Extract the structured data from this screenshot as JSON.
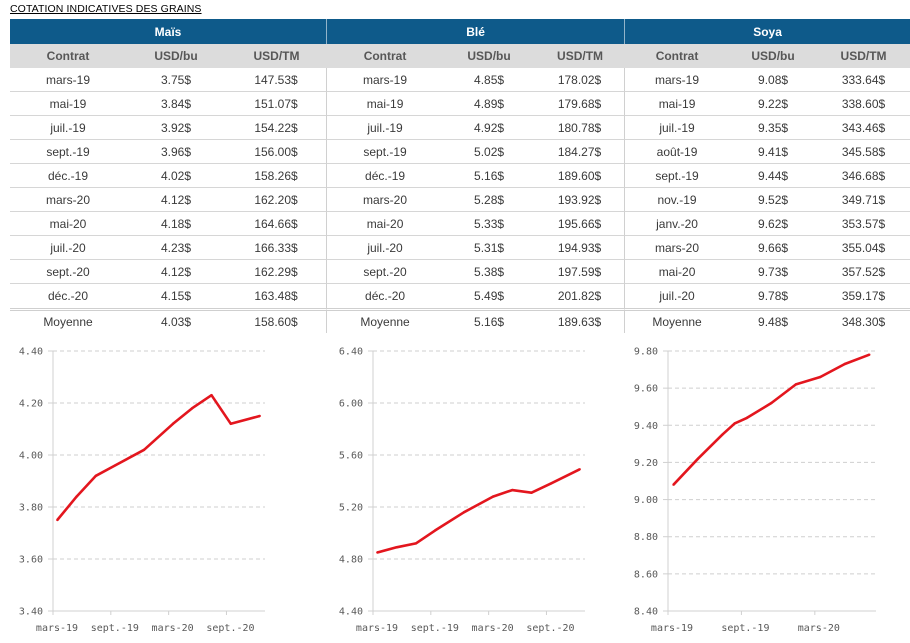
{
  "title": "COTATION INDICATIVES DES GRAINS",
  "columns": [
    "Contrat",
    "USD/bu",
    "USD/TM"
  ],
  "groups": [
    {
      "name": "Maïs",
      "rows": [
        [
          "mars-19",
          "3.75$",
          "147.53$"
        ],
        [
          "mai-19",
          "3.84$",
          "151.07$"
        ],
        [
          "juil.-19",
          "3.92$",
          "154.22$"
        ],
        [
          "sept.-19",
          "3.96$",
          "156.00$"
        ],
        [
          "déc.-19",
          "4.02$",
          "158.26$"
        ],
        [
          "mars-20",
          "4.12$",
          "162.20$"
        ],
        [
          "mai-20",
          "4.18$",
          "164.66$"
        ],
        [
          "juil.-20",
          "4.23$",
          "166.33$"
        ],
        [
          "sept.-20",
          "4.12$",
          "162.29$"
        ],
        [
          "déc.-20",
          "4.15$",
          "163.48$"
        ]
      ],
      "average": [
        "Moyenne",
        "4.03$",
        "158.60$"
      ]
    },
    {
      "name": "Blé",
      "rows": [
        [
          "mars-19",
          "4.85$",
          "178.02$"
        ],
        [
          "mai-19",
          "4.89$",
          "179.68$"
        ],
        [
          "juil.-19",
          "4.92$",
          "180.78$"
        ],
        [
          "sept.-19",
          "5.02$",
          "184.27$"
        ],
        [
          "déc.-19",
          "5.16$",
          "189.60$"
        ],
        [
          "mars-20",
          "5.28$",
          "193.92$"
        ],
        [
          "mai-20",
          "5.33$",
          "195.66$"
        ],
        [
          "juil.-20",
          "5.31$",
          "194.93$"
        ],
        [
          "sept.-20",
          "5.38$",
          "197.59$"
        ],
        [
          "déc.-20",
          "5.49$",
          "201.82$"
        ]
      ],
      "average": [
        "Moyenne",
        "5.16$",
        "189.63$"
      ]
    },
    {
      "name": "Soya",
      "rows": [
        [
          "mars-19",
          "9.08$",
          "333.64$"
        ],
        [
          "mai-19",
          "9.22$",
          "338.60$"
        ],
        [
          "juil.-19",
          "9.35$",
          "343.46$"
        ],
        [
          "août-19",
          "9.41$",
          "345.58$"
        ],
        [
          "sept.-19",
          "9.44$",
          "346.68$"
        ],
        [
          "nov.-19",
          "9.52$",
          "349.71$"
        ],
        [
          "janv.-20",
          "9.62$",
          "353.57$"
        ],
        [
          "mars-20",
          "9.66$",
          "355.04$"
        ],
        [
          "mai-20",
          "9.73$",
          "357.52$"
        ],
        [
          "juil.-20",
          "9.78$",
          "359.17$"
        ]
      ],
      "average": [
        "Moyenne",
        "9.48$",
        "348.30$"
      ]
    }
  ],
  "chart_data": [
    {
      "type": "line",
      "title": "",
      "xlabel": "",
      "ylabel": "",
      "x": [
        "mars-19",
        "mai-19",
        "juil.-19",
        "sept.-19",
        "déc.-19",
        "mars-20",
        "mai-20",
        "juil.-20",
        "sept.-20",
        "déc.-20"
      ],
      "series": [
        {
          "name": "Maïs",
          "values": [
            3.75,
            3.84,
            3.92,
            3.96,
            4.02,
            4.12,
            4.18,
            4.23,
            4.12,
            4.15
          ],
          "color": "#E3161E"
        }
      ],
      "ylim": [
        3.4,
        4.4
      ],
      "yticks": [
        "3.40",
        "3.60",
        "3.80",
        "4.00",
        "4.20",
        "4.40"
      ],
      "xlim": [
        "mars-19",
        "janv.-21"
      ],
      "xticks": [
        "mars-19",
        "sept.-19",
        "mars-20",
        "sept.-20"
      ],
      "grid": "horizontal-dashed",
      "legend": "none"
    },
    {
      "type": "line",
      "title": "",
      "xlabel": "",
      "ylabel": "",
      "x": [
        "mars-19",
        "mai-19",
        "juil.-19",
        "sept.-19",
        "déc.-19",
        "mars-20",
        "mai-20",
        "juil.-20",
        "sept.-20",
        "déc.-20"
      ],
      "series": [
        {
          "name": "Blé",
          "values": [
            4.85,
            4.89,
            4.92,
            5.02,
            5.16,
            5.28,
            5.33,
            5.31,
            5.38,
            5.49
          ],
          "color": "#E3161E"
        }
      ],
      "ylim": [
        4.4,
        6.4
      ],
      "yticks": [
        "4.40",
        "4.80",
        "5.20",
        "5.60",
        "6.00",
        "6.40"
      ],
      "xlim": [
        "mars-19",
        "janv.-21"
      ],
      "xticks": [
        "mars-19",
        "sept.-19",
        "mars-20",
        "sept.-20"
      ],
      "grid": "horizontal-dashed",
      "legend": "none"
    },
    {
      "type": "line",
      "title": "",
      "xlabel": "",
      "ylabel": "",
      "x": [
        "mars-19",
        "mai-19",
        "juil.-19",
        "août-19",
        "sept.-19",
        "nov.-19",
        "janv.-20",
        "mars-20",
        "mai-20",
        "juil.-20"
      ],
      "series": [
        {
          "name": "Soya",
          "values": [
            9.08,
            9.22,
            9.35,
            9.41,
            9.44,
            9.52,
            9.62,
            9.66,
            9.73,
            9.78
          ],
          "color": "#E3161E"
        }
      ],
      "ylim": [
        8.4,
        9.8
      ],
      "yticks": [
        "8.40",
        "8.60",
        "8.80",
        "9.00",
        "9.20",
        "9.40",
        "9.60",
        "9.80"
      ],
      "xlim": [
        "mars-19",
        "août-20"
      ],
      "xticks": [
        "mars-19",
        "sept.-19",
        "mars-20"
      ],
      "grid": "horizontal-dashed",
      "legend": "none"
    }
  ]
}
